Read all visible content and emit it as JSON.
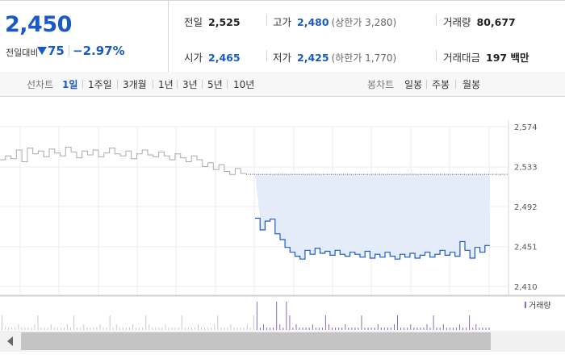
{
  "quote": {
    "price": "2,450",
    "change_label": "전일대비",
    "change_value": "75",
    "change_pct": "−2.97%",
    "direction": "down"
  },
  "stats": {
    "prev_close_label": "전일",
    "prev_close": "2,525",
    "high_label": "고가",
    "high": "2,480",
    "upper_limit": "(상한가 3,280)",
    "volume_label": "거래량",
    "volume": "80,677",
    "open_label": "시가",
    "open": "2,465",
    "low_label": "저가",
    "low": "2,425",
    "lower_limit": "(하한가 1,770)",
    "value_label": "거래대금",
    "value": "197 백만"
  },
  "line_tabs": {
    "label": "선차트",
    "items": [
      "1일",
      "1주일",
      "3개월",
      "1년",
      "3년",
      "5년",
      "10년"
    ],
    "active": "1일"
  },
  "candle_tabs": {
    "label": "봉차트",
    "items": [
      "일봉",
      "주봉",
      "월봉"
    ]
  },
  "colors": {
    "accent": "#1a5ac7",
    "down": "#1a5ac7",
    "volume_bar": "#8a6bb8",
    "prev_day_line": "#aaaaaa",
    "fill": "#e4ecfa"
  },
  "chart_data": {
    "type": "line",
    "y_ticks": [
      "2,574",
      "2,533",
      "2,492",
      "2,451",
      "2,410"
    ],
    "ylim": [
      2410,
      2574
    ],
    "prev_close_ref": 2525,
    "volume_legend": "거래량",
    "series": [
      {
        "values": [
          2540,
          2544,
          2541,
          2550,
          2538,
          2552,
          2546,
          2549,
          2543,
          2551,
          2547,
          2544,
          2553,
          2548,
          2542,
          2549,
          2545,
          2550,
          2543,
          2547,
          2552,
          2546,
          2544,
          2549,
          2541,
          2546,
          2550,
          2545,
          2543,
          2548,
          2544,
          2540,
          2546,
          2542,
          2538,
          2544,
          2540,
          2533,
          2537,
          2530,
          2535,
          2528,
          2525,
          2531,
          2526
        ]
      },
      {
        "values": [
          2480,
          2468,
          2477,
          2479,
          2464,
          2458,
          2450,
          2445,
          2441,
          2438,
          2447,
          2443,
          2449,
          2444,
          2446,
          2442,
          2447,
          2443,
          2441,
          2445,
          2443,
          2440,
          2446,
          2439,
          2443,
          2440,
          2445,
          2441,
          2438,
          2443,
          2440,
          2444,
          2439,
          2442,
          2445,
          2440,
          2443,
          2447,
          2442,
          2445,
          2441,
          2456,
          2447,
          2439,
          2450,
          2445,
          2452
        ]
      }
    ]
  }
}
